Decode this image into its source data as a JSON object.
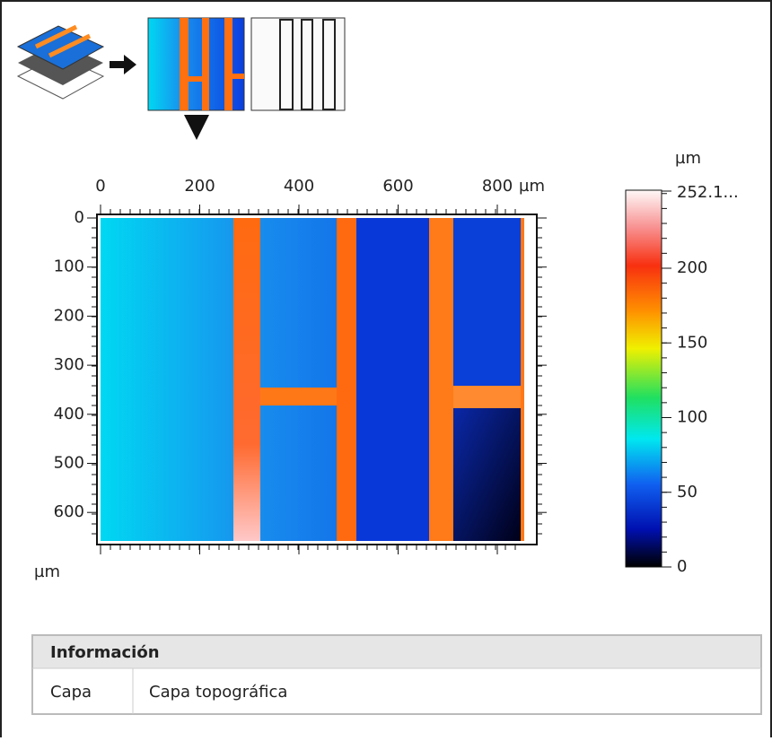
{
  "height_map": {
    "x_unit": "µm",
    "x_ticks": [
      0,
      200,
      400,
      600,
      800
    ],
    "y_unit": "µm",
    "y_ticks": [
      0,
      100,
      200,
      300,
      400,
      500,
      600
    ]
  },
  "colorbar": {
    "unit": "µm",
    "max_label": "252.1...",
    "ticks": [
      200,
      150,
      100,
      50,
      0
    ]
  },
  "info_table": {
    "title": "Información",
    "rows": [
      [
        "Capa",
        "Capa topográfica"
      ]
    ]
  }
}
